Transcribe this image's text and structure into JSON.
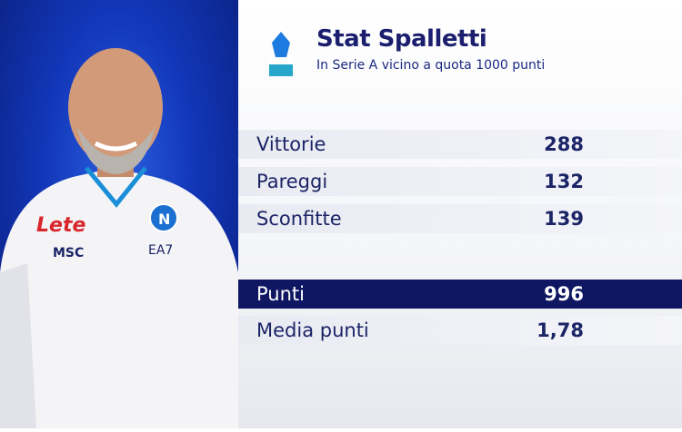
{
  "header": {
    "title": "Stat Spalletti",
    "subtitle": "In Serie A vicino a quota 1000 punti",
    "logo": "serie-a-logo"
  },
  "stats": [
    {
      "label": "Vittorie",
      "value": "288"
    },
    {
      "label": "Pareggi",
      "value": "132"
    },
    {
      "label": "Sconfitte",
      "value": "139"
    }
  ],
  "totals": [
    {
      "label": "Punti",
      "value": "996",
      "highlight": true
    },
    {
      "label": "Media punti",
      "value": "1,78"
    }
  ],
  "photo": {
    "shirt_sponsor": "Lete",
    "shirt_brand": "MSC",
    "kit_maker": "EA7",
    "crest": "N"
  },
  "colors": {
    "navy": "#0f1763",
    "blue_bg": "#1236b8",
    "title": "#1b1f6e"
  }
}
